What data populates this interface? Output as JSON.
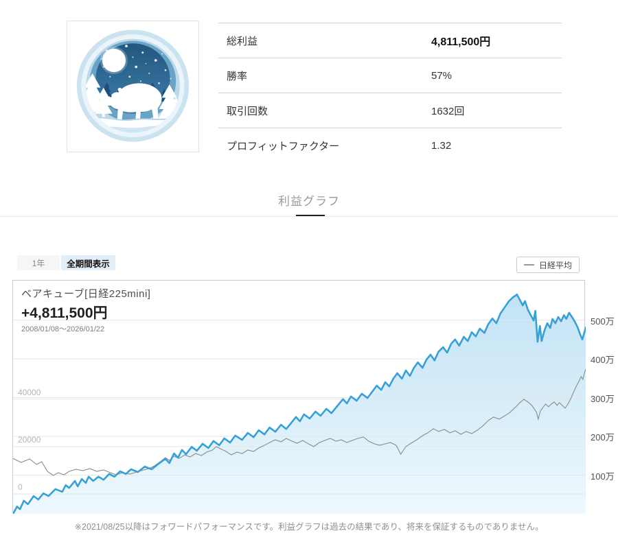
{
  "profile": {
    "stats": [
      {
        "label": "総利益",
        "value": "4,811,500円"
      },
      {
        "label": "勝率",
        "value": "57%"
      },
      {
        "label": "取引回数",
        "value": "1632回"
      },
      {
        "label": "プロフィットファクター",
        "value": "1.32"
      }
    ]
  },
  "tab": {
    "label": "利益グラフ"
  },
  "controls": {
    "period_1y": "1年",
    "period_all": "全期間表示",
    "legend_label": "日経平均"
  },
  "chart_header": {
    "title": "ベアキューブ[日経225mini]",
    "total": "+4,811,500円",
    "range": "2008/01/08～2026/01/22"
  },
  "footer_note": "※2021/08/25以降はフォワードパフォーマンスです。利益グラフは過去の結果であり、将来を保証するものでありません。",
  "chart_data": {
    "type": "line",
    "x_unit": "percent_of_range",
    "x_range": {
      "start": "2008/01/08",
      "end": "2026/01/22"
    },
    "colors": {
      "profit_line": "#36a0d8",
      "nikkei_line": "#8b8b8b",
      "area_top": "#c2e3f5",
      "area_bottom": "#eef8fd",
      "grid": "#e4e6e8"
    },
    "right_axis": {
      "title": "profit_man_yen",
      "min": 0,
      "max": 602,
      "ticks": [
        {
          "label": "500万",
          "value": 500
        },
        {
          "label": "400万",
          "value": 400
        },
        {
          "label": "300万",
          "value": 300
        },
        {
          "label": "200万",
          "value": 200
        },
        {
          "label": "100万",
          "value": 100
        }
      ]
    },
    "left_axis": {
      "title": "nikkei_index",
      "min": -8400,
      "max": 90100,
      "ticks": [
        {
          "label": "40000",
          "value": 40000
        },
        {
          "label": "20000",
          "value": 20000
        },
        {
          "label": "0",
          "value": 0
        }
      ]
    },
    "series": [
      {
        "name": "ベアキューブ[日経225mini]",
        "axis": "right",
        "style": "area",
        "final_value_yen": "4,811,500",
        "points": [
          [
            0,
            0
          ],
          [
            0.7,
            19
          ],
          [
            1.2,
            12
          ],
          [
            1.9,
            34
          ],
          [
            2.6,
            25
          ],
          [
            3.6,
            46
          ],
          [
            4.4,
            37
          ],
          [
            5.3,
            53
          ],
          [
            6.2,
            46
          ],
          [
            7.4,
            64
          ],
          [
            8.6,
            57
          ],
          [
            9.2,
            74
          ],
          [
            9.8,
            67
          ],
          [
            10.8,
            85
          ],
          [
            11.3,
            71
          ],
          [
            12,
            90
          ],
          [
            12.7,
            80
          ],
          [
            13.2,
            96
          ],
          [
            14,
            85
          ],
          [
            14.9,
            96
          ],
          [
            15.8,
            88
          ],
          [
            16.8,
            103
          ],
          [
            17.7,
            96
          ],
          [
            18.7,
            110
          ],
          [
            19.7,
            103
          ],
          [
            20.6,
            115
          ],
          [
            21.8,
            108
          ],
          [
            23,
            122
          ],
          [
            24.2,
            115
          ],
          [
            25.4,
            129
          ],
          [
            26.6,
            142
          ],
          [
            27.3,
            131
          ],
          [
            28.1,
            156
          ],
          [
            28.8,
            145
          ],
          [
            29.5,
            165
          ],
          [
            30.2,
            154
          ],
          [
            31.2,
            173
          ],
          [
            32.1,
            163
          ],
          [
            33.1,
            181
          ],
          [
            34.1,
            170
          ],
          [
            35,
            188
          ],
          [
            36,
            177
          ],
          [
            36.9,
            195
          ],
          [
            37.9,
            184
          ],
          [
            38.8,
            202
          ],
          [
            40,
            191
          ],
          [
            41,
            209
          ],
          [
            42,
            198
          ],
          [
            42.9,
            216
          ],
          [
            43.9,
            205
          ],
          [
            44.8,
            223
          ],
          [
            45.8,
            212
          ],
          [
            46.8,
            230
          ],
          [
            47.7,
            219
          ],
          [
            48.7,
            237
          ],
          [
            49.4,
            250
          ],
          [
            50.1,
            239
          ],
          [
            50.8,
            257
          ],
          [
            51.8,
            246
          ],
          [
            52.8,
            264
          ],
          [
            53.7,
            253
          ],
          [
            54.7,
            271
          ],
          [
            55.6,
            260
          ],
          [
            56.6,
            278
          ],
          [
            57.6,
            296
          ],
          [
            58.3,
            285
          ],
          [
            59,
            303
          ],
          [
            60,
            292
          ],
          [
            60.9,
            310
          ],
          [
            61.9,
            299
          ],
          [
            62.8,
            317
          ],
          [
            63.5,
            331
          ],
          [
            64.3,
            320
          ],
          [
            65,
            340
          ],
          [
            65.7,
            329
          ],
          [
            66.4,
            349
          ],
          [
            67.1,
            363
          ],
          [
            67.9,
            349
          ],
          [
            68.6,
            370
          ],
          [
            69.3,
            356
          ],
          [
            70,
            377
          ],
          [
            70.7,
            391
          ],
          [
            71.5,
            377
          ],
          [
            72.2,
            398
          ],
          [
            72.9,
            411
          ],
          [
            73.6,
            396
          ],
          [
            74.3,
            419
          ],
          [
            75.1,
            430
          ],
          [
            75.8,
            416
          ],
          [
            76.5,
            439
          ],
          [
            77.2,
            450
          ],
          [
            77.9,
            434
          ],
          [
            78.7,
            457
          ],
          [
            79.4,
            446
          ],
          [
            80.1,
            469
          ],
          [
            80.8,
            458
          ],
          [
            81.5,
            478
          ],
          [
            82.3,
            467
          ],
          [
            83,
            490
          ],
          [
            83.7,
            504
          ],
          [
            84.4,
            492
          ],
          [
            85.1,
            517
          ],
          [
            85.9,
            534
          ],
          [
            86.6,
            549
          ],
          [
            87.3,
            559
          ],
          [
            88,
            566
          ],
          [
            88.5,
            552
          ],
          [
            89,
            538
          ],
          [
            89.4,
            549
          ],
          [
            89.9,
            527
          ],
          [
            90.4,
            513
          ],
          [
            90.9,
            499
          ],
          [
            91.2,
            524
          ],
          [
            91.6,
            444
          ],
          [
            92,
            485
          ],
          [
            92.3,
            446
          ],
          [
            92.8,
            474
          ],
          [
            93.3,
            492
          ],
          [
            93.8,
            480
          ],
          [
            94.2,
            503
          ],
          [
            94.7,
            492
          ],
          [
            95.2,
            508
          ],
          [
            95.7,
            497
          ],
          [
            96.2,
            513
          ],
          [
            96.6,
            503
          ],
          [
            97.1,
            519
          ],
          [
            97.6,
            508
          ],
          [
            98.1,
            496
          ],
          [
            98.6,
            481
          ],
          [
            99,
            464
          ],
          [
            99.4,
            450
          ],
          [
            99.8,
            470
          ],
          [
            100,
            481
          ]
        ]
      },
      {
        "name": "日経平均",
        "axis": "left",
        "style": "line",
        "points": [
          [
            0,
            15000
          ],
          [
            1.4,
            13340
          ],
          [
            2.9,
            14790
          ],
          [
            4.1,
            12470
          ],
          [
            5,
            13620
          ],
          [
            6,
            9570
          ],
          [
            7,
            7830
          ],
          [
            7.9,
            8990
          ],
          [
            8.9,
            8120
          ],
          [
            9.8,
            9570
          ],
          [
            11,
            10440
          ],
          [
            12.2,
            9860
          ],
          [
            13.4,
            10730
          ],
          [
            14.6,
            9570
          ],
          [
            15.8,
            10150
          ],
          [
            17,
            8990
          ],
          [
            18,
            8120
          ],
          [
            19.2,
            8990
          ],
          [
            20.4,
            8410
          ],
          [
            21.6,
            9280
          ],
          [
            22.8,
            10150
          ],
          [
            23.7,
            10730
          ],
          [
            24.7,
            11890
          ],
          [
            25.7,
            13620
          ],
          [
            26.6,
            15360
          ],
          [
            27.3,
            14210
          ],
          [
            28.1,
            15940
          ],
          [
            29,
            15070
          ],
          [
            30,
            16520
          ],
          [
            30.9,
            15650
          ],
          [
            31.9,
            17100
          ],
          [
            32.9,
            16230
          ],
          [
            33.8,
            17680
          ],
          [
            34.8,
            18550
          ],
          [
            35.5,
            20000
          ],
          [
            36.2,
            19130
          ],
          [
            37.2,
            17970
          ],
          [
            38.1,
            16520
          ],
          [
            39.1,
            17680
          ],
          [
            40,
            17100
          ],
          [
            41,
            18550
          ],
          [
            42,
            17970
          ],
          [
            42.9,
            19420
          ],
          [
            43.9,
            20580
          ],
          [
            44.8,
            21740
          ],
          [
            45.8,
            22900
          ],
          [
            46.8,
            22030
          ],
          [
            47.7,
            23480
          ],
          [
            48.7,
            22320
          ],
          [
            49.6,
            21450
          ],
          [
            50.6,
            22610
          ],
          [
            51.6,
            21160
          ],
          [
            52.5,
            20000
          ],
          [
            53.5,
            21740
          ],
          [
            54.4,
            22610
          ],
          [
            55.4,
            23480
          ],
          [
            56.4,
            22320
          ],
          [
            57.3,
            22900
          ],
          [
            58.3,
            21740
          ],
          [
            59.2,
            22610
          ],
          [
            60.2,
            23480
          ],
          [
            61.2,
            24060
          ],
          [
            62.1,
            22320
          ],
          [
            63.1,
            21160
          ],
          [
            64,
            20600
          ],
          [
            65,
            21160
          ],
          [
            65.9,
            21740
          ],
          [
            66.9,
            20580
          ],
          [
            67.7,
            16810
          ],
          [
            68.6,
            20000
          ],
          [
            69.5,
            21450
          ],
          [
            70.5,
            22900
          ],
          [
            71.5,
            24640
          ],
          [
            72.4,
            25800
          ],
          [
            73.4,
            27540
          ],
          [
            74.3,
            26380
          ],
          [
            75.3,
            27250
          ],
          [
            76.3,
            25800
          ],
          [
            77.2,
            26670
          ],
          [
            78.2,
            25220
          ],
          [
            79.1,
            26380
          ],
          [
            80.1,
            25510
          ],
          [
            81.1,
            26960
          ],
          [
            82,
            28700
          ],
          [
            83,
            31020
          ],
          [
            83.9,
            32470
          ],
          [
            84.9,
            31600
          ],
          [
            85.9,
            33050
          ],
          [
            86.8,
            34500
          ],
          [
            87.8,
            36820
          ],
          [
            88.5,
            38560
          ],
          [
            89.2,
            40010
          ],
          [
            89.9,
            38850
          ],
          [
            90.6,
            37400
          ],
          [
            91.4,
            34500
          ],
          [
            91.7,
            31600
          ],
          [
            92.1,
            35080
          ],
          [
            92.6,
            36820
          ],
          [
            93,
            37980
          ],
          [
            93.5,
            36820
          ],
          [
            94,
            37980
          ],
          [
            94.5,
            38850
          ],
          [
            95,
            37400
          ],
          [
            95.4,
            38560
          ],
          [
            95.9,
            37400
          ],
          [
            96.4,
            36240
          ],
          [
            96.9,
            37980
          ],
          [
            97.4,
            40300
          ],
          [
            97.8,
            42620
          ],
          [
            98.3,
            45230
          ],
          [
            98.8,
            47550
          ],
          [
            99.2,
            49580
          ],
          [
            99.5,
            48420
          ],
          [
            99.8,
            51320
          ],
          [
            100,
            52770
          ]
        ]
      }
    ]
  }
}
